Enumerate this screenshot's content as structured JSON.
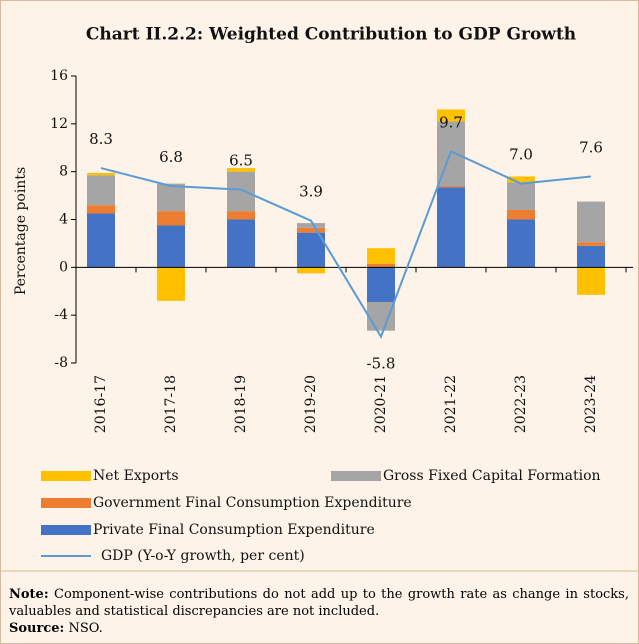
{
  "chart_data": {
    "type": "bar",
    "stacked": true,
    "title": "Chart II.2.2: Weighted Contribution to GDP Growth",
    "ylabel": "Percentage points",
    "categories": [
      "2016-17",
      "2017-18",
      "2018-19",
      "2019-20",
      "2020-21",
      "2021-22",
      "2022-23",
      "2023-24"
    ],
    "series": [
      {
        "name": "Private Final Consumption Expenditure",
        "color": "#4472c4",
        "values": [
          4.5,
          3.5,
          4.0,
          2.9,
          -2.9,
          6.7,
          4.0,
          1.8
        ]
      },
      {
        "name": "Government Final Consumption Expenditure",
        "color": "#ed7d31",
        "values": [
          0.7,
          1.2,
          0.7,
          0.4,
          0.3,
          0.1,
          0.8,
          0.3
        ]
      },
      {
        "name": "Gross Fixed Capital Formation",
        "color": "#a5a5a5",
        "values": [
          2.5,
          2.3,
          3.3,
          0.4,
          -2.4,
          5.4,
          2.3,
          3.4
        ]
      },
      {
        "name": "Net Exports",
        "color": "#ffc000",
        "values": [
          0.2,
          -2.8,
          0.3,
          -0.5,
          1.3,
          1.0,
          0.5,
          -2.3
        ]
      }
    ],
    "line": {
      "name": "GDP (Y-o-Y growth, per cent)",
      "color": "#5b9bd5",
      "values": [
        8.3,
        6.8,
        6.5,
        3.9,
        -5.8,
        9.7,
        7.0,
        7.6
      ],
      "value_labels": [
        "8.3",
        "6.8",
        "6.5",
        "3.9",
        "-5.8",
        "9.7",
        "7.0",
        "7.6"
      ]
    },
    "ylim": [
      -8,
      16
    ],
    "yticks": [
      -8,
      -4,
      0,
      4,
      8,
      12,
      16
    ],
    "note_label": "Note:",
    "note": "Component-wise contributions do not add up to the growth rate as change in stocks, valuables and statistical discrepancies are not included.",
    "source_label": "Source:",
    "source": "NSO."
  }
}
